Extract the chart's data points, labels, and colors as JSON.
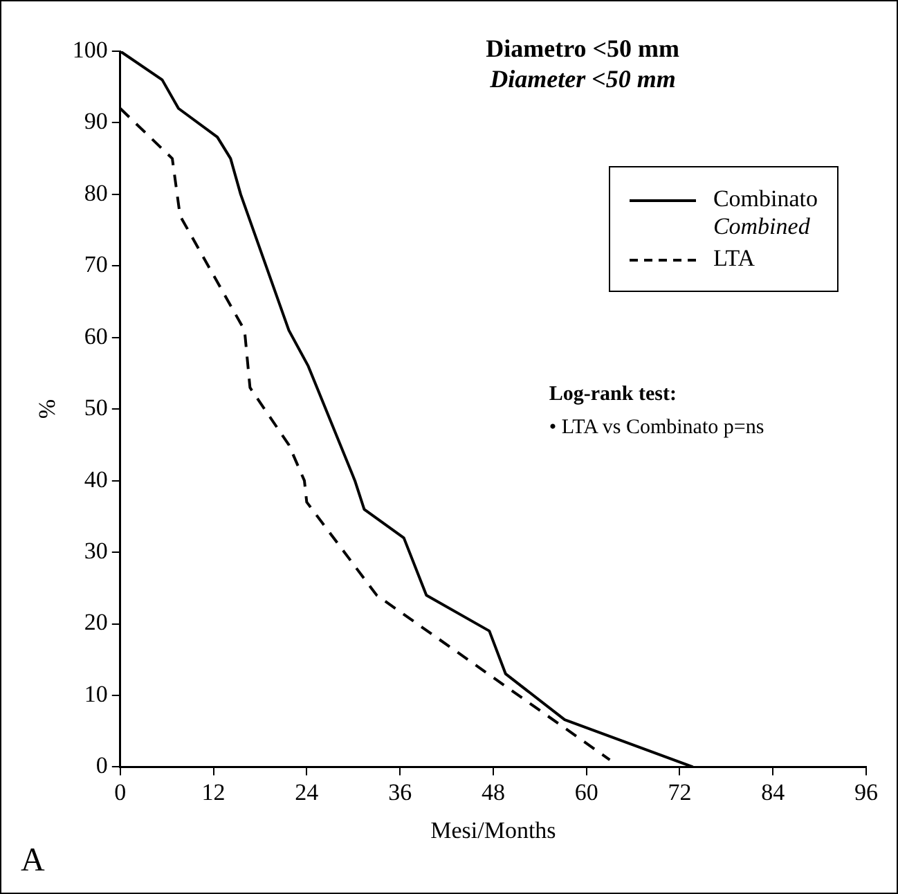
{
  "chart_data": {
    "type": "line",
    "title": "Diametro <50 mm",
    "subtitle": "Diameter <50 mm",
    "xlabel": "Mesi/Months",
    "ylabel": "%",
    "xlim": [
      0,
      96
    ],
    "xticks": [
      0,
      12,
      24,
      36,
      48,
      60,
      72,
      84,
      96
    ],
    "ylim": [
      0,
      100
    ],
    "yticks": [
      0,
      10,
      20,
      30,
      40,
      50,
      60,
      70,
      80,
      90,
      100
    ],
    "grid": false,
    "legend": "top right",
    "marker": "none",
    "series": [
      {
        "name": "Combinato\nCombined",
        "color": "#000000",
        "line_style": "solid",
        "x": [
          0,
          5.4,
          7.5,
          12.5,
          14.2,
          15.5,
          21.7,
          24.2,
          30.2,
          31.4,
          36.5,
          39.4,
          47.5,
          49.6,
          57.2,
          73.7
        ],
        "values": [
          100,
          96,
          92,
          88,
          85,
          80,
          61,
          56,
          40,
          36,
          32,
          24,
          19,
          13,
          6.6,
          0
        ]
      },
      {
        "name": "LTA",
        "color": "#000000",
        "line_style": "dashed",
        "x": [
          0,
          6.7,
          7.7,
          16,
          16.7,
          21.7,
          23.7,
          24,
          33,
          63
        ],
        "values": [
          92,
          85,
          77,
          61,
          53,
          45,
          40,
          37,
          24,
          1
        ]
      }
    ],
    "annotations": [
      "Log-rank test:",
      "• LTA vs Combinato p=ns",
      "A"
    ]
  }
}
